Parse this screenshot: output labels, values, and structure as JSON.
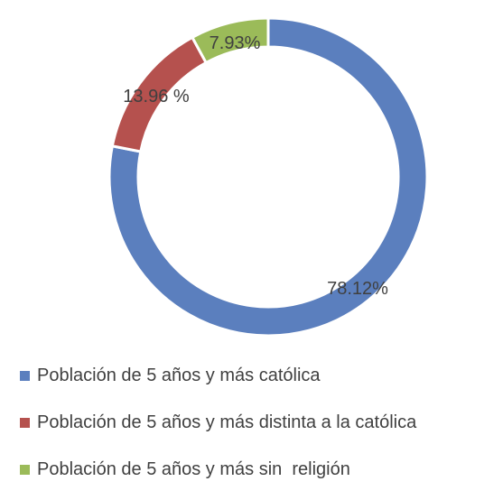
{
  "chart_data": {
    "type": "pie",
    "subtype": "donut",
    "legend_position": "bottom",
    "slices": [
      {
        "label": "Población de 5 años y más católica",
        "value": 78.12,
        "data_label": "78.12%",
        "color": "#5B7FBE"
      },
      {
        "label": "Población de 5 años y más distinta a la católica",
        "value": 13.96,
        "data_label": "13.96 %",
        "color": "#B5514E"
      },
      {
        "label": "Población de 5 años y más sin  religión",
        "value": 7.93,
        "data_label": "7.93%",
        "color": "#9BBB59"
      }
    ]
  }
}
